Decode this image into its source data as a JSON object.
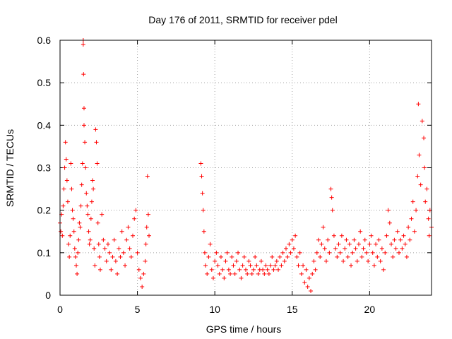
{
  "chart_data": {
    "type": "scatter",
    "title": "Day 176 of 2011, SRMTID for receiver pdel",
    "xlabel": "GPS time / hours",
    "ylabel": "SRMTID / TECUs",
    "xlim": [
      0,
      24
    ],
    "ylim": [
      0,
      0.6
    ],
    "xticks": [
      0,
      5,
      10,
      15,
      20
    ],
    "xtick_labels": [
      "0",
      "5",
      "10",
      "15",
      "20"
    ],
    "yticks": [
      0,
      0.1,
      0.2,
      0.3,
      0.4,
      0.5,
      0.6
    ],
    "ytick_labels": [
      "0",
      "0.1",
      "0.2",
      "0.3",
      "0.4",
      "0.5",
      "0.6"
    ],
    "grid": true,
    "legend": "none",
    "marker": "+",
    "color": "#ff0000",
    "series": [
      {
        "name": "SRMTID",
        "points": [
          [
            0.0,
            0.17
          ],
          [
            0.05,
            0.15
          ],
          [
            0.1,
            0.19
          ],
          [
            0.15,
            0.14
          ],
          [
            0.2,
            0.21
          ],
          [
            0.25,
            0.25
          ],
          [
            0.3,
            0.3
          ],
          [
            0.35,
            0.36
          ],
          [
            0.4,
            0.32
          ],
          [
            0.45,
            0.27
          ],
          [
            0.5,
            0.22
          ],
          [
            0.55,
            0.12
          ],
          [
            0.6,
            0.09
          ],
          [
            0.65,
            0.14
          ],
          [
            0.7,
            0.31
          ],
          [
            0.75,
            0.25
          ],
          [
            0.8,
            0.2
          ],
          [
            0.85,
            0.18
          ],
          [
            0.9,
            0.15
          ],
          [
            0.95,
            0.11
          ],
          [
            1.0,
            0.09
          ],
          [
            1.05,
            0.07
          ],
          [
            1.1,
            0.05
          ],
          [
            1.15,
            0.1
          ],
          [
            1.2,
            0.13
          ],
          [
            1.25,
            0.17
          ],
          [
            1.3,
            0.16
          ],
          [
            1.35,
            0.21
          ],
          [
            1.4,
            0.26
          ],
          [
            1.45,
            0.31
          ],
          [
            1.5,
            0.59
          ],
          [
            1.5,
            0.6
          ],
          [
            1.52,
            0.52
          ],
          [
            1.55,
            0.44
          ],
          [
            1.55,
            0.4
          ],
          [
            1.6,
            0.36
          ],
          [
            1.65,
            0.3
          ],
          [
            1.7,
            0.24
          ],
          [
            1.75,
            0.21
          ],
          [
            1.8,
            0.19
          ],
          [
            1.85,
            0.15
          ],
          [
            1.9,
            0.12
          ],
          [
            1.95,
            0.13
          ],
          [
            2.0,
            0.18
          ],
          [
            2.05,
            0.22
          ],
          [
            2.1,
            0.27
          ],
          [
            2.15,
            0.25
          ],
          [
            2.2,
            0.11
          ],
          [
            2.25,
            0.07
          ],
          [
            2.3,
            0.39
          ],
          [
            2.35,
            0.36
          ],
          [
            2.4,
            0.31
          ],
          [
            2.45,
            0.17
          ],
          [
            2.5,
            0.12
          ],
          [
            2.55,
            0.09
          ],
          [
            2.6,
            0.06
          ],
          [
            2.7,
            0.19
          ],
          [
            2.8,
            0.13
          ],
          [
            2.9,
            0.11
          ],
          [
            3.0,
            0.08
          ],
          [
            3.1,
            0.12
          ],
          [
            3.2,
            0.1
          ],
          [
            3.3,
            0.06
          ],
          [
            3.4,
            0.09
          ],
          [
            3.5,
            0.13
          ],
          [
            3.6,
            0.08
          ],
          [
            3.7,
            0.05
          ],
          [
            3.8,
            0.11
          ],
          [
            3.9,
            0.09
          ],
          [
            4.0,
            0.15
          ],
          [
            4.1,
            0.1
          ],
          [
            4.2,
            0.07
          ],
          [
            4.3,
            0.13
          ],
          [
            4.4,
            0.16
          ],
          [
            4.5,
            0.11
          ],
          [
            4.6,
            0.09
          ],
          [
            4.7,
            0.14
          ],
          [
            4.8,
            0.18
          ],
          [
            4.9,
            0.2
          ],
          [
            5.0,
            0.1
          ],
          [
            5.1,
            0.06
          ],
          [
            5.2,
            0.04
          ],
          [
            5.3,
            0.02
          ],
          [
            5.4,
            0.05
          ],
          [
            5.5,
            0.08
          ],
          [
            5.55,
            0.12
          ],
          [
            5.6,
            0.16
          ],
          [
            5.65,
            0.28
          ],
          [
            5.7,
            0.19
          ],
          [
            5.75,
            0.14
          ],
          [
            9.1,
            0.31
          ],
          [
            9.15,
            0.28
          ],
          [
            9.2,
            0.24
          ],
          [
            9.25,
            0.2
          ],
          [
            9.3,
            0.15
          ],
          [
            9.35,
            0.1
          ],
          [
            9.4,
            0.07
          ],
          [
            9.5,
            0.05
          ],
          [
            9.6,
            0.09
          ],
          [
            9.7,
            0.12
          ],
          [
            9.8,
            0.06
          ],
          [
            9.9,
            0.04
          ],
          [
            10.0,
            0.08
          ],
          [
            10.1,
            0.1
          ],
          [
            10.2,
            0.07
          ],
          [
            10.3,
            0.05
          ],
          [
            10.4,
            0.09
          ],
          [
            10.5,
            0.06
          ],
          [
            10.6,
            0.04
          ],
          [
            10.7,
            0.08
          ],
          [
            10.8,
            0.1
          ],
          [
            10.9,
            0.06
          ],
          [
            11.0,
            0.05
          ],
          [
            11.1,
            0.09
          ],
          [
            11.2,
            0.07
          ],
          [
            11.3,
            0.05
          ],
          [
            11.4,
            0.08
          ],
          [
            11.5,
            0.1
          ],
          [
            11.6,
            0.06
          ],
          [
            11.7,
            0.04
          ],
          [
            11.8,
            0.07
          ],
          [
            11.9,
            0.09
          ],
          [
            12.0,
            0.06
          ],
          [
            12.1,
            0.05
          ],
          [
            12.2,
            0.08
          ],
          [
            12.3,
            0.07
          ],
          [
            12.4,
            0.05
          ],
          [
            12.5,
            0.06
          ],
          [
            12.6,
            0.09
          ],
          [
            12.7,
            0.07
          ],
          [
            12.8,
            0.05
          ],
          [
            12.9,
            0.06
          ],
          [
            13.0,
            0.08
          ],
          [
            13.1,
            0.06
          ],
          [
            13.2,
            0.05
          ],
          [
            13.3,
            0.07
          ],
          [
            13.4,
            0.06
          ],
          [
            13.5,
            0.05
          ],
          [
            13.6,
            0.07
          ],
          [
            13.7,
            0.09
          ],
          [
            13.8,
            0.06
          ],
          [
            13.9,
            0.07
          ],
          [
            14.0,
            0.08
          ],
          [
            14.1,
            0.06
          ],
          [
            14.2,
            0.09
          ],
          [
            14.3,
            0.07
          ],
          [
            14.4,
            0.1
          ],
          [
            14.5,
            0.08
          ],
          [
            14.6,
            0.11
          ],
          [
            14.7,
            0.09
          ],
          [
            14.8,
            0.12
          ],
          [
            14.9,
            0.1
          ],
          [
            15.0,
            0.13
          ],
          [
            15.1,
            0.11
          ],
          [
            15.2,
            0.14
          ],
          [
            15.3,
            0.09
          ],
          [
            15.4,
            0.07
          ],
          [
            15.5,
            0.1
          ],
          [
            15.6,
            0.05
          ],
          [
            15.7,
            0.07
          ],
          [
            15.8,
            0.03
          ],
          [
            15.9,
            0.06
          ],
          [
            16.0,
            0.02
          ],
          [
            16.1,
            0.04
          ],
          [
            16.2,
            0.01
          ],
          [
            16.3,
            0.05
          ],
          [
            16.4,
            0.08
          ],
          [
            16.5,
            0.06
          ],
          [
            16.6,
            0.1
          ],
          [
            16.7,
            0.13
          ],
          [
            16.8,
            0.09
          ],
          [
            16.9,
            0.12
          ],
          [
            17.0,
            0.16
          ],
          [
            17.1,
            0.11
          ],
          [
            17.2,
            0.08
          ],
          [
            17.3,
            0.13
          ],
          [
            17.4,
            0.1
          ],
          [
            17.5,
            0.25
          ],
          [
            17.55,
            0.23
          ],
          [
            17.6,
            0.2
          ],
          [
            17.7,
            0.14
          ],
          [
            17.8,
            0.11
          ],
          [
            17.9,
            0.09
          ],
          [
            18.0,
            0.12
          ],
          [
            18.1,
            0.1
          ],
          [
            18.2,
            0.14
          ],
          [
            18.3,
            0.08
          ],
          [
            18.4,
            0.11
          ],
          [
            18.5,
            0.13
          ],
          [
            18.6,
            0.09
          ],
          [
            18.7,
            0.12
          ],
          [
            18.8,
            0.07
          ],
          [
            18.9,
            0.1
          ],
          [
            19.0,
            0.13
          ],
          [
            19.1,
            0.11
          ],
          [
            19.2,
            0.08
          ],
          [
            19.3,
            0.12
          ],
          [
            19.4,
            0.15
          ],
          [
            19.5,
            0.09
          ],
          [
            19.6,
            0.11
          ],
          [
            19.7,
            0.13
          ],
          [
            19.8,
            0.1
          ],
          [
            19.9,
            0.08
          ],
          [
            20.0,
            0.12
          ],
          [
            20.1,
            0.14
          ],
          [
            20.2,
            0.1
          ],
          [
            20.3,
            0.07
          ],
          [
            20.4,
            0.12
          ],
          [
            20.5,
            0.09
          ],
          [
            20.6,
            0.13
          ],
          [
            20.7,
            0.08
          ],
          [
            20.8,
            0.11
          ],
          [
            20.9,
            0.06
          ],
          [
            21.0,
            0.1
          ],
          [
            21.1,
            0.14
          ],
          [
            21.2,
            0.2
          ],
          [
            21.3,
            0.17
          ],
          [
            21.4,
            0.12
          ],
          [
            21.5,
            0.09
          ],
          [
            21.6,
            0.13
          ],
          [
            21.7,
            0.11
          ],
          [
            21.8,
            0.15
          ],
          [
            21.9,
            0.1
          ],
          [
            22.0,
            0.13
          ],
          [
            22.1,
            0.11
          ],
          [
            22.2,
            0.14
          ],
          [
            22.3,
            0.12
          ],
          [
            22.4,
            0.09
          ],
          [
            22.5,
            0.16
          ],
          [
            22.6,
            0.13
          ],
          [
            22.7,
            0.18
          ],
          [
            22.8,
            0.22
          ],
          [
            22.9,
            0.15
          ],
          [
            23.0,
            0.2
          ],
          [
            23.1,
            0.28
          ],
          [
            23.15,
            0.45
          ],
          [
            23.2,
            0.33
          ],
          [
            23.3,
            0.26
          ],
          [
            23.4,
            0.41
          ],
          [
            23.5,
            0.37
          ],
          [
            23.55,
            0.3
          ],
          [
            23.6,
            0.22
          ],
          [
            23.7,
            0.25
          ],
          [
            23.8,
            0.18
          ],
          [
            23.85,
            0.14
          ],
          [
            23.9,
            0.2
          ],
          [
            24.0,
            0.16
          ]
        ]
      }
    ]
  }
}
